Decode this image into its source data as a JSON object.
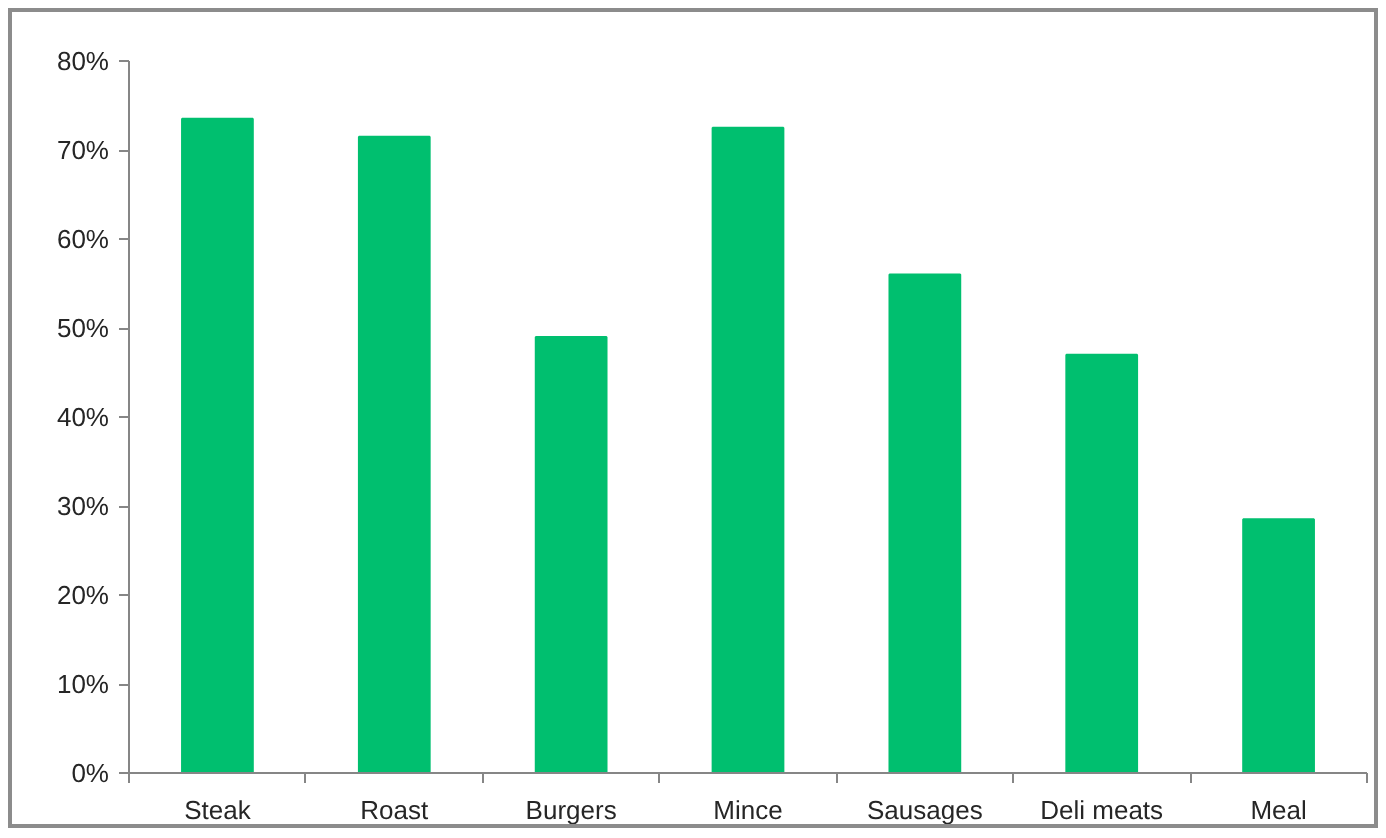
{
  "chart_data": {
    "type": "bar",
    "categories": [
      "Steak",
      "Roast",
      "Burgers",
      "Mince",
      "Sausages",
      "Deli meats",
      "Meal"
    ],
    "values": [
      73.5,
      71.5,
      49,
      72.5,
      56,
      47,
      28.5
    ],
    "color": "#00bf6f",
    "ylim": [
      0,
      80
    ],
    "yticks": [
      {
        "value": 0,
        "label": "0%"
      },
      {
        "value": 10,
        "label": "10%"
      },
      {
        "value": 20,
        "label": "20%"
      },
      {
        "value": 30,
        "label": "30%"
      },
      {
        "value": 40,
        "label": "40%"
      },
      {
        "value": 50,
        "label": "50%"
      },
      {
        "value": 60,
        "label": "60%"
      },
      {
        "value": 70,
        "label": "70%"
      },
      {
        "value": 80,
        "label": "80%"
      }
    ],
    "grid": false
  }
}
